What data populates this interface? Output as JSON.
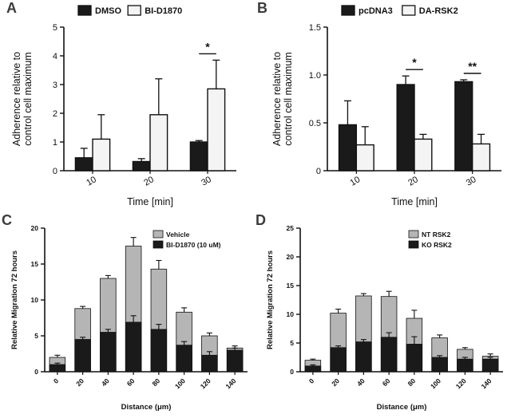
{
  "figure": {
    "background": "#ffffff"
  },
  "chart_data": [
    {
      "panel_label": "A",
      "type": "grouped-bar",
      "xlabel": "Time [min]",
      "ylabel_lines": [
        "Adherence relative to",
        "control cell maximum"
      ],
      "categories": [
        "10",
        "20",
        "30"
      ],
      "ylim": [
        0,
        5
      ],
      "ytick_values": [
        0,
        1,
        2,
        3,
        4,
        5
      ],
      "ytick_labels": [
        "0",
        "1",
        "2",
        "3",
        "4",
        "5"
      ],
      "legend_position": "top",
      "series": [
        {
          "name": "DMSO",
          "color": "#1a1a1a",
          "values": [
            0.45,
            0.32,
            1.0
          ],
          "errors": [
            0.33,
            0.1,
            0.05
          ]
        },
        {
          "name": "BI-D1870",
          "color": "#f4f4f4",
          "values": [
            1.1,
            1.95,
            2.85
          ],
          "errors": [
            0.85,
            1.25,
            1.0
          ]
        }
      ],
      "significance": [
        {
          "category": "30",
          "label": "*"
        }
      ]
    },
    {
      "panel_label": "B",
      "type": "grouped-bar",
      "xlabel": "Time [min]",
      "ylabel_lines": [
        "Adherence relative to",
        "control cell maximum"
      ],
      "categories": [
        "10",
        "20",
        "30"
      ],
      "ylim": [
        0,
        1.5
      ],
      "ytick_values": [
        0,
        0.5,
        1.0,
        1.5
      ],
      "ytick_labels": [
        "0",
        "0.5",
        "1.0",
        "1.5"
      ],
      "legend_position": "top",
      "series": [
        {
          "name": "pcDNA3",
          "color": "#1a1a1a",
          "values": [
            0.48,
            0.9,
            0.93
          ],
          "errors": [
            0.25,
            0.09,
            0.02
          ]
        },
        {
          "name": "DA-RSK2",
          "color": "#f4f4f4",
          "values": [
            0.27,
            0.33,
            0.28
          ],
          "errors": [
            0.19,
            0.05,
            0.1
          ]
        }
      ],
      "significance": [
        {
          "category": "20",
          "label": "*"
        },
        {
          "category": "30",
          "label": "**"
        }
      ]
    },
    {
      "panel_label": "C",
      "type": "overlay-bar",
      "xlabel": "Distance (μm)",
      "ylabel_lines": [
        "Relative Migration 72 hours"
      ],
      "categories": [
        "0",
        "20",
        "40",
        "60",
        "80",
        "100",
        "120",
        "140"
      ],
      "ylim": [
        0,
        20
      ],
      "ytick_values": [
        0,
        5,
        10,
        15,
        20
      ],
      "ytick_labels": [
        "0",
        "5",
        "10",
        "15",
        "20"
      ],
      "legend_position": "top-right",
      "series": [
        {
          "name": "Vehicle",
          "color": "#b5b5b5",
          "values": [
            2.0,
            8.8,
            13.0,
            17.5,
            14.3,
            8.3,
            5.0,
            3.3
          ],
          "errors": [
            0.3,
            0.3,
            0.4,
            1.2,
            1.2,
            0.6,
            0.4,
            0.3
          ]
        },
        {
          "name": "BI-D1870 (10 uM)",
          "color": "#1a1a1a",
          "values": [
            1.0,
            4.5,
            5.5,
            6.9,
            5.9,
            3.7,
            2.3,
            3.0
          ],
          "errors": [
            0.2,
            0.3,
            0.4,
            0.9,
            0.7,
            0.5,
            0.5,
            0.3
          ]
        }
      ],
      "significance": []
    },
    {
      "panel_label": "D",
      "type": "overlay-bar",
      "xlabel": "Distance (μm)",
      "ylabel_lines": [
        "Relative Migration 72 hours"
      ],
      "categories": [
        "0",
        "20",
        "40",
        "60",
        "80",
        "100",
        "120",
        "140"
      ],
      "ylim": [
        0,
        25
      ],
      "ytick_values": [
        0,
        5,
        10,
        15,
        20,
        25
      ],
      "ytick_labels": [
        "0",
        "5",
        "10",
        "15",
        "20",
        "25"
      ],
      "legend_position": "top-right",
      "series": [
        {
          "name": "NT RSK2",
          "color": "#b5b5b5",
          "values": [
            2.0,
            10.2,
            13.2,
            13.1,
            9.3,
            5.9,
            3.9,
            2.7
          ],
          "errors": [
            0.2,
            0.7,
            0.4,
            0.9,
            1.4,
            0.5,
            0.3,
            0.4
          ]
        },
        {
          "name": "KO RSK2",
          "color": "#1a1a1a",
          "values": [
            1.0,
            4.2,
            5.2,
            6.0,
            4.8,
            2.5,
            2.2,
            2.2
          ],
          "errors": [
            0.2,
            0.3,
            0.4,
            0.8,
            1.3,
            0.3,
            0.3,
            0.3
          ]
        }
      ],
      "significance": []
    }
  ]
}
